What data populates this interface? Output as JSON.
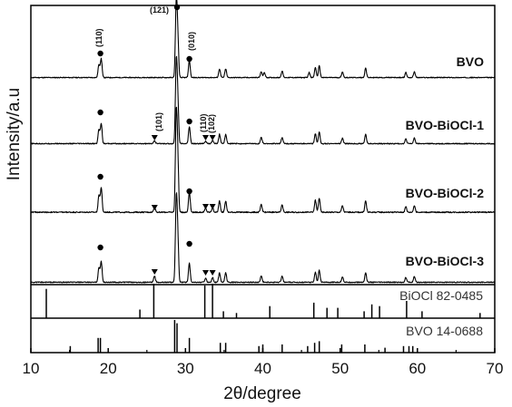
{
  "chart_data": {
    "type": "line",
    "title": "",
    "xlabel": "2θ/degree",
    "ylabel": "Intensity/a.u",
    "xlim": [
      10,
      70
    ],
    "xticks": [
      "10",
      "20",
      "30",
      "40",
      "50",
      "60",
      "70"
    ],
    "grid": false,
    "series": [
      {
        "name": "BVO",
        "peaks": [
          {
            "x": 18.8,
            "h": 0.18
          },
          {
            "x": 19.1,
            "h": 0.26
          },
          {
            "x": 28.8,
            "h": 1.0
          },
          {
            "x": 29.0,
            "h": 0.55
          },
          {
            "x": 30.5,
            "h": 0.24
          },
          {
            "x": 34.4,
            "h": 0.12
          },
          {
            "x": 35.2,
            "h": 0.12
          },
          {
            "x": 39.8,
            "h": 0.08
          },
          {
            "x": 40.2,
            "h": 0.07
          },
          {
            "x": 42.5,
            "h": 0.09
          },
          {
            "x": 46.0,
            "h": 0.07
          },
          {
            "x": 46.8,
            "h": 0.14
          },
          {
            "x": 47.3,
            "h": 0.16
          },
          {
            "x": 50.3,
            "h": 0.08
          },
          {
            "x": 53.3,
            "h": 0.13
          },
          {
            "x": 58.5,
            "h": 0.07
          },
          {
            "x": 59.6,
            "h": 0.08
          }
        ]
      },
      {
        "name": "BVO-BiOCl-1",
        "peaks": [
          {
            "x": 18.8,
            "h": 0.18
          },
          {
            "x": 19.1,
            "h": 0.26
          },
          {
            "x": 26.0,
            "h": 0.04
          },
          {
            "x": 28.8,
            "h": 1.0
          },
          {
            "x": 29.0,
            "h": 0.55
          },
          {
            "x": 30.5,
            "h": 0.22
          },
          {
            "x": 32.6,
            "h": 0.03
          },
          {
            "x": 33.5,
            "h": 0.04
          },
          {
            "x": 34.4,
            "h": 0.12
          },
          {
            "x": 35.2,
            "h": 0.12
          },
          {
            "x": 39.8,
            "h": 0.08
          },
          {
            "x": 42.5,
            "h": 0.08
          },
          {
            "x": 46.8,
            "h": 0.13
          },
          {
            "x": 47.3,
            "h": 0.15
          },
          {
            "x": 50.3,
            "h": 0.07
          },
          {
            "x": 53.3,
            "h": 0.12
          },
          {
            "x": 58.5,
            "h": 0.06
          },
          {
            "x": 59.6,
            "h": 0.07
          }
        ]
      },
      {
        "name": "BVO-BiOCl-2",
        "peaks": [
          {
            "x": 18.8,
            "h": 0.18
          },
          {
            "x": 19.1,
            "h": 0.26
          },
          {
            "x": 26.0,
            "h": 0.06
          },
          {
            "x": 28.8,
            "h": 1.0
          },
          {
            "x": 29.0,
            "h": 0.55
          },
          {
            "x": 30.5,
            "h": 0.22
          },
          {
            "x": 32.6,
            "h": 0.04
          },
          {
            "x": 33.5,
            "h": 0.05
          },
          {
            "x": 34.4,
            "h": 0.12
          },
          {
            "x": 35.2,
            "h": 0.12
          },
          {
            "x": 39.8,
            "h": 0.08
          },
          {
            "x": 42.5,
            "h": 0.08
          },
          {
            "x": 46.8,
            "h": 0.13
          },
          {
            "x": 47.3,
            "h": 0.15
          },
          {
            "x": 50.3,
            "h": 0.07
          },
          {
            "x": 53.3,
            "h": 0.12
          },
          {
            "x": 58.5,
            "h": 0.06
          },
          {
            "x": 59.6,
            "h": 0.07
          }
        ]
      },
      {
        "name": "BVO-BiOCl-3",
        "peaks": [
          {
            "x": 18.8,
            "h": 0.18
          },
          {
            "x": 19.1,
            "h": 0.26
          },
          {
            "x": 26.0,
            "h": 0.08
          },
          {
            "x": 28.8,
            "h": 1.0
          },
          {
            "x": 29.0,
            "h": 0.55
          },
          {
            "x": 30.5,
            "h": 0.24
          },
          {
            "x": 32.6,
            "h": 0.05
          },
          {
            "x": 33.5,
            "h": 0.06
          },
          {
            "x": 34.4,
            "h": 0.12
          },
          {
            "x": 35.2,
            "h": 0.12
          },
          {
            "x": 39.8,
            "h": 0.08
          },
          {
            "x": 42.5,
            "h": 0.08
          },
          {
            "x": 46.8,
            "h": 0.13
          },
          {
            "x": 47.3,
            "h": 0.15
          },
          {
            "x": 50.3,
            "h": 0.07
          },
          {
            "x": 53.3,
            "h": 0.12
          },
          {
            "x": 58.5,
            "h": 0.06
          },
          {
            "x": 59.6,
            "h": 0.07
          }
        ]
      }
    ],
    "reference_patterns": [
      {
        "name": "BiOCl 82-0485",
        "lines": [
          {
            "x": 12.0,
            "h": 0.85
          },
          {
            "x": 24.1,
            "h": 0.25
          },
          {
            "x": 25.9,
            "h": 1.0
          },
          {
            "x": 32.5,
            "h": 0.95
          },
          {
            "x": 33.5,
            "h": 1.0
          },
          {
            "x": 34.9,
            "h": 0.2
          },
          {
            "x": 36.6,
            "h": 0.15
          },
          {
            "x": 40.9,
            "h": 0.35
          },
          {
            "x": 46.6,
            "h": 0.45
          },
          {
            "x": 48.3,
            "h": 0.3
          },
          {
            "x": 49.7,
            "h": 0.3
          },
          {
            "x": 53.1,
            "h": 0.2
          },
          {
            "x": 54.1,
            "h": 0.4
          },
          {
            "x": 55.1,
            "h": 0.35
          },
          {
            "x": 58.6,
            "h": 0.5
          },
          {
            "x": 60.6,
            "h": 0.2
          },
          {
            "x": 68.1,
            "h": 0.15
          }
        ]
      },
      {
        "name": "BVO 14-0688",
        "lines": [
          {
            "x": 15.1,
            "h": 0.2
          },
          {
            "x": 18.7,
            "h": 0.45
          },
          {
            "x": 19.0,
            "h": 0.45
          },
          {
            "x": 28.6,
            "h": 1.0
          },
          {
            "x": 28.9,
            "h": 0.9
          },
          {
            "x": 30.5,
            "h": 0.45
          },
          {
            "x": 34.5,
            "h": 0.3
          },
          {
            "x": 35.2,
            "h": 0.3
          },
          {
            "x": 39.5,
            "h": 0.2
          },
          {
            "x": 40.0,
            "h": 0.25
          },
          {
            "x": 42.5,
            "h": 0.25
          },
          {
            "x": 45.8,
            "h": 0.2
          },
          {
            "x": 46.7,
            "h": 0.3
          },
          {
            "x": 47.3,
            "h": 0.35
          },
          {
            "x": 50.2,
            "h": 0.25
          },
          {
            "x": 53.2,
            "h": 0.25
          },
          {
            "x": 55.8,
            "h": 0.15
          },
          {
            "x": 58.2,
            "h": 0.2
          },
          {
            "x": 58.9,
            "h": 0.2
          },
          {
            "x": 59.4,
            "h": 0.2
          }
        ]
      }
    ],
    "annotations": [
      {
        "text": "(110)",
        "x": 19.0,
        "series": "BVO",
        "marker": "dot"
      },
      {
        "text": "(121)",
        "x": 28.9,
        "series": "BVO",
        "marker": "dot"
      },
      {
        "text": "(010)",
        "x": 30.5,
        "series": "BVO",
        "marker": "dot"
      },
      {
        "text": "(101)",
        "x": 26.0,
        "series": "BVO-BiOCl-1",
        "marker": "triangle"
      },
      {
        "text": "(110)",
        "x": 32.6,
        "series": "BVO-BiOCl-1",
        "marker": "triangle"
      },
      {
        "text": "(102)",
        "x": 33.5,
        "series": "BVO-BiOCl-1",
        "marker": "triangle"
      }
    ]
  }
}
